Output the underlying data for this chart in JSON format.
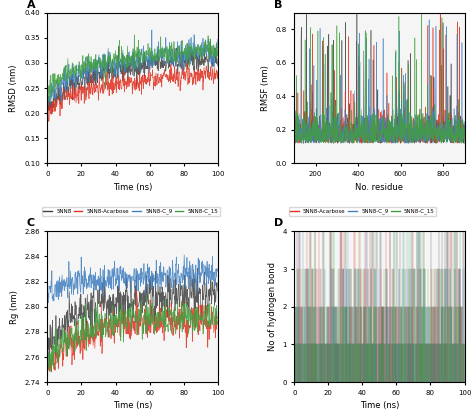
{
  "legend_labels": [
    "5NN8",
    "5NN8-Acarbose",
    "5NN8-C_9",
    "5NN8-C_15"
  ],
  "colors": [
    "#404040",
    "#e03020",
    "#4080c0",
    "#40a040"
  ],
  "panel_labels": [
    "A",
    "B",
    "C",
    "D"
  ],
  "rmsd": {
    "xlabel": "Time (ns)",
    "ylabel": "RMSD (nm)",
    "xlim": [
      0,
      100
    ],
    "ylim": [
      0.1,
      0.4
    ],
    "yticks": [
      0.1,
      0.15,
      0.2,
      0.25,
      0.3,
      0.35,
      0.4
    ],
    "xticks": [
      0,
      20,
      40,
      60,
      80,
      100
    ],
    "seed": 42,
    "n_points": 500
  },
  "rmsf": {
    "xlabel": "No. residue",
    "ylabel": "RMSF (nm)",
    "xlim": [
      100,
      900
    ],
    "ylim": [
      0.0,
      0.9
    ],
    "yticks": [
      0.0,
      0.2,
      0.4,
      0.6,
      0.8
    ],
    "xticks": [
      200,
      400,
      600,
      800
    ],
    "seed": 123,
    "n_points": 800
  },
  "rg": {
    "xlabel": "Time (ns)",
    "ylabel": "Rg (nm)",
    "xlim": [
      0,
      100
    ],
    "ylim": [
      2.74,
      2.86
    ],
    "yticks": [
      2.74,
      2.76,
      2.78,
      2.8,
      2.82,
      2.84,
      2.86
    ],
    "xticks": [
      0,
      20,
      40,
      60,
      80,
      100
    ],
    "seed": 77,
    "n_points": 500
  },
  "hbond": {
    "xlabel": "Time (ns)",
    "ylabel": "No of hydrogen bond",
    "xlim": [
      0,
      100
    ],
    "ylim": [
      0,
      4
    ],
    "yticks": [
      0,
      1,
      2,
      3,
      4
    ],
    "xticks": [
      0,
      20,
      40,
      60,
      80,
      100
    ],
    "seed": 99,
    "n_points": 500
  },
  "background_color": "#f5f5f5",
  "figure_face_color": "#ffffff"
}
